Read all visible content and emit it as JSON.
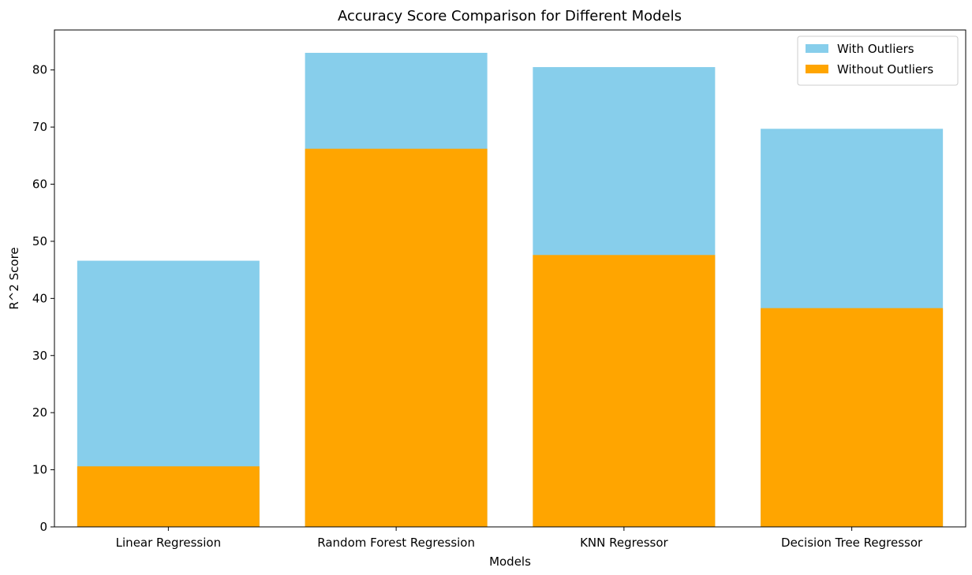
{
  "chart_data": {
    "type": "bar",
    "title": "Accuracy Score Comparison for Different Models",
    "xlabel": "Models",
    "ylabel": "R^2 Score",
    "categories": [
      "Linear Regression",
      "Random Forest Regression",
      "KNN Regressor",
      "Decision Tree Regressor"
    ],
    "series": [
      {
        "name": "With Outliers",
        "values": [
          46.6,
          83.0,
          80.5,
          69.7
        ],
        "color": "#87ceeb"
      },
      {
        "name": "Without Outliers",
        "values": [
          10.6,
          66.2,
          47.6,
          38.3
        ],
        "color": "#ffa500"
      }
    ],
    "ylim": [
      0,
      87
    ],
    "yticks": [
      0,
      10,
      20,
      30,
      40,
      50,
      60,
      70,
      80
    ],
    "grid": false,
    "legend_position": "top-right",
    "overlap": true
  }
}
